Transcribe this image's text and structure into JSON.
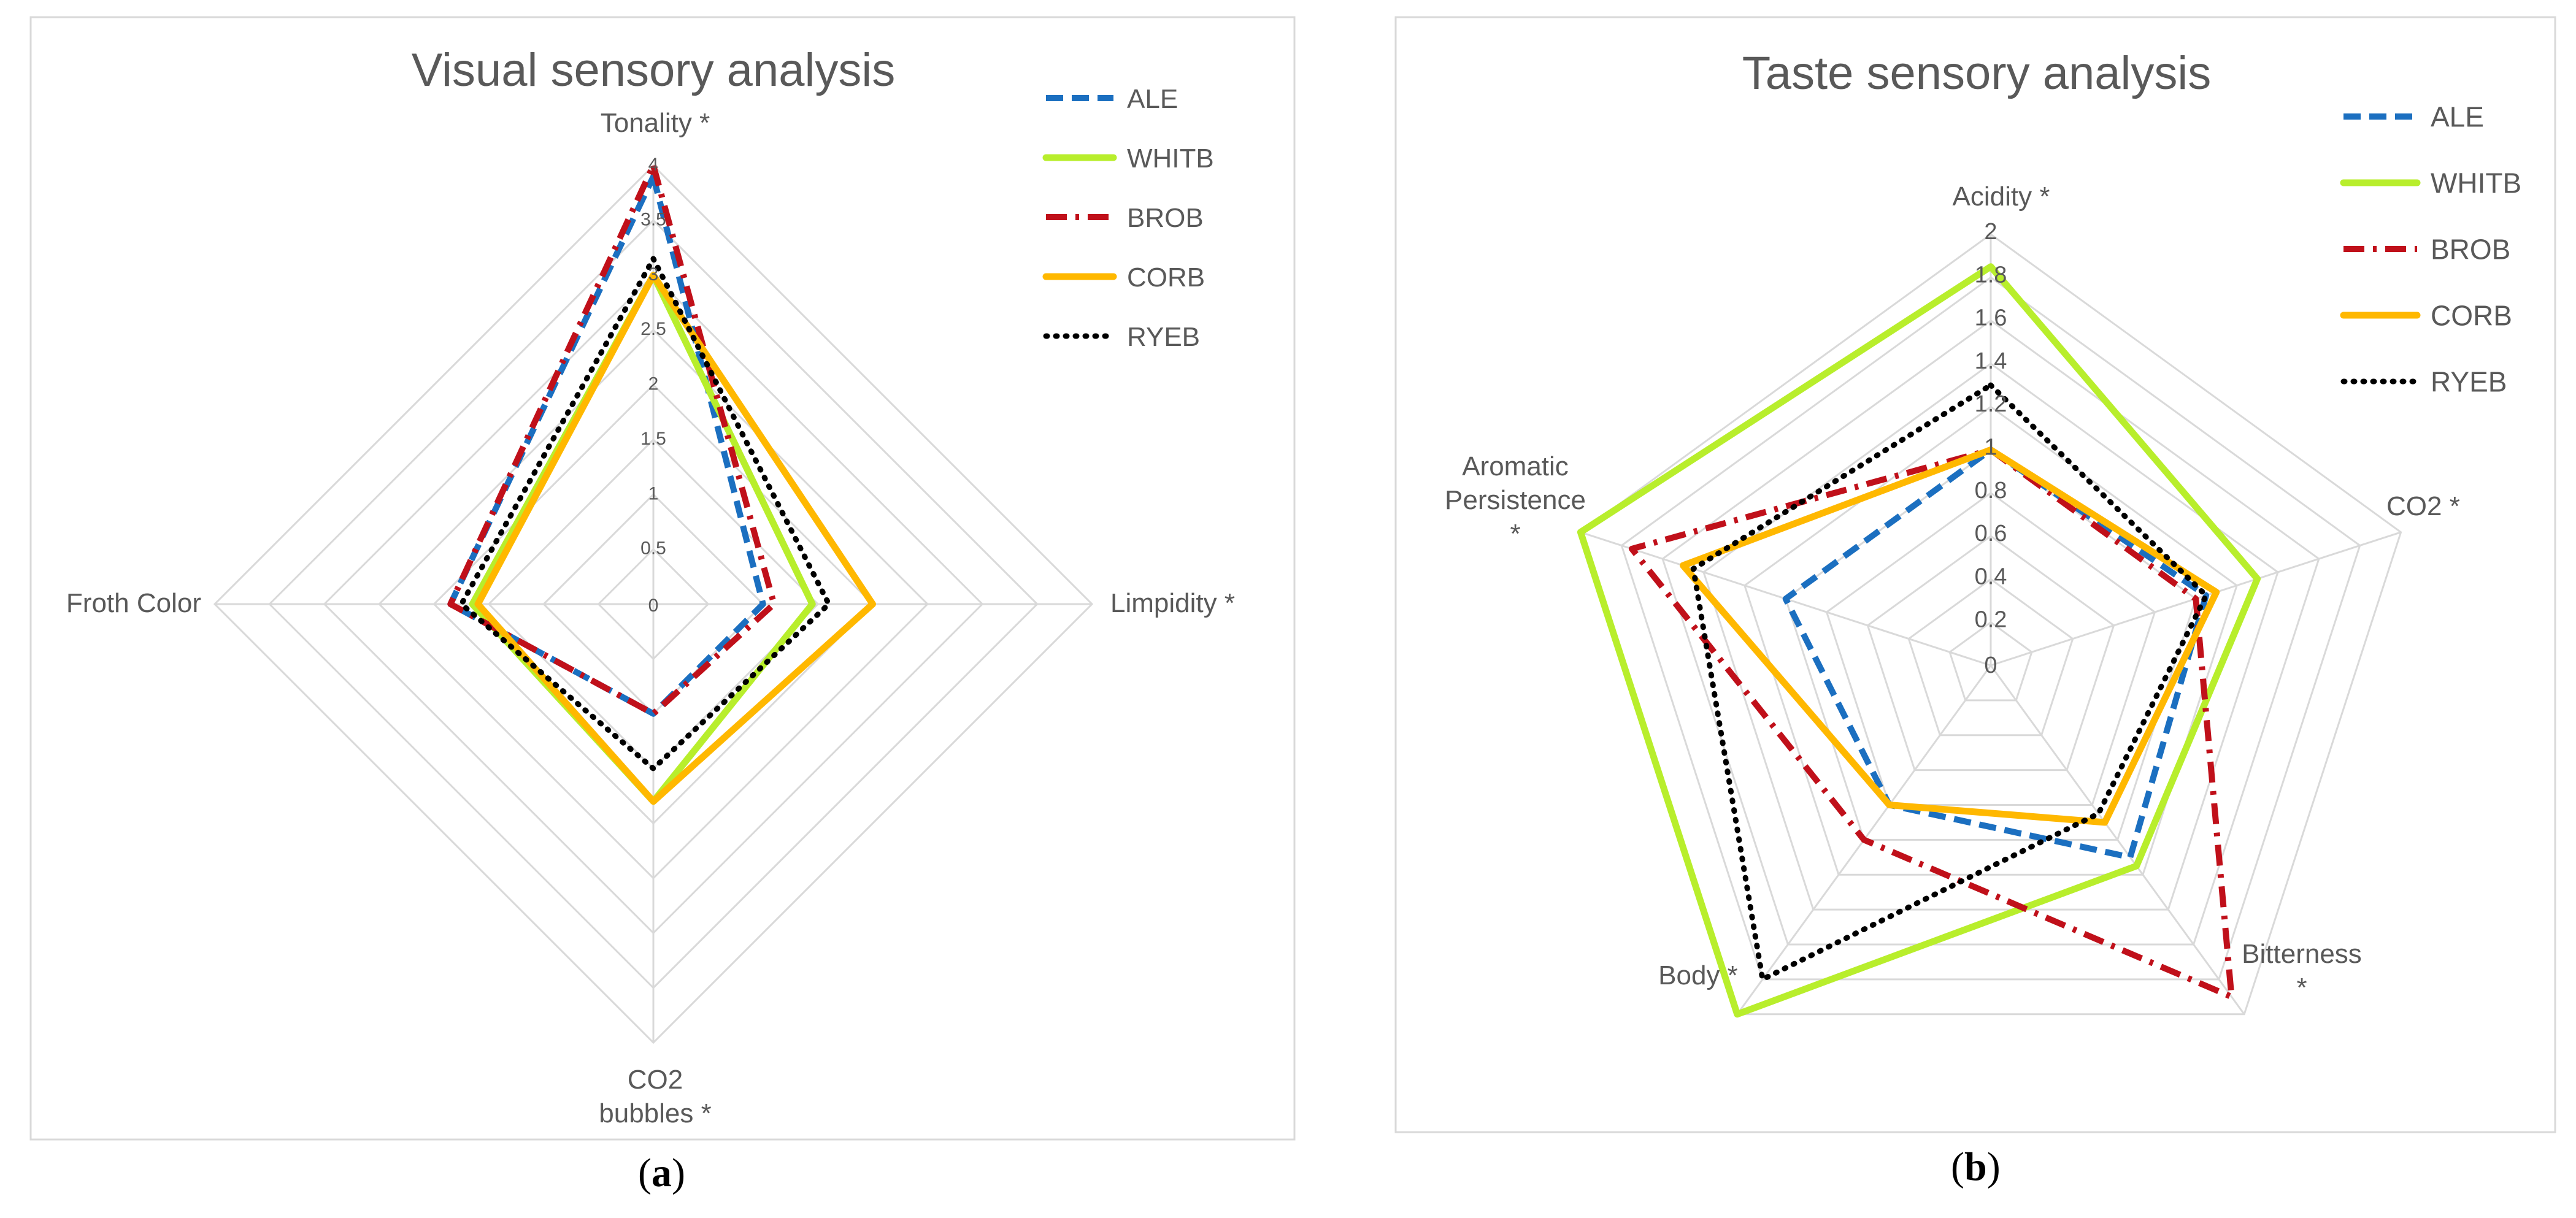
{
  "colors": {
    "ALE": "#1b6fc0",
    "WHITB": "#b8ee2c",
    "BROB": "#c0101a",
    "CORB": "#ffb800",
    "RYEB": "#000000",
    "grid": "#d9d9d9",
    "frame": "#d9d9d9",
    "text": "#595959"
  },
  "panel_labels": {
    "a": "a",
    "b": "b"
  },
  "chart_data": [
    {
      "type": "radar",
      "title": "Visual sensory analysis",
      "axes": [
        "Tonality *",
        "Limpidity *",
        "CO2 bubbles *",
        "Froth Color"
      ],
      "rlim": [
        0,
        4
      ],
      "ticks": [
        "0",
        "0.5",
        "1",
        "1.5",
        "2",
        "2.5",
        "3",
        "3.5",
        "4"
      ],
      "grid": true,
      "legend_position": "top-right",
      "series": [
        {
          "name": "ALE",
          "values": [
            3.9,
            1.0,
            1.0,
            1.85
          ]
        },
        {
          "name": "WHITB",
          "values": [
            3.0,
            1.45,
            1.8,
            1.65
          ]
        },
        {
          "name": "BROB",
          "values": [
            4.0,
            1.1,
            1.0,
            1.85
          ]
        },
        {
          "name": "CORB",
          "values": [
            3.0,
            2.0,
            1.8,
            1.6
          ]
        },
        {
          "name": "RYEB",
          "values": [
            3.15,
            1.6,
            1.5,
            1.75
          ]
        }
      ]
    },
    {
      "type": "radar",
      "title": "Taste sensory analysis",
      "axes": [
        "Acidity *",
        "CO2 *",
        "Bitterness *",
        "Body *",
        "Aromatic Persistence *"
      ],
      "rlim": [
        0,
        2
      ],
      "ticks": [
        "0",
        "0.2",
        "0.4",
        "0.6",
        "0.8",
        "1",
        "1.2",
        "1.4",
        "1.6",
        "1.8",
        "2"
      ],
      "grid": true,
      "legend_position": "top-right",
      "series": [
        {
          "name": "ALE",
          "values": [
            1.0,
            1.05,
            1.1,
            0.8,
            1.0
          ]
        },
        {
          "name": "WHITB",
          "values": [
            1.85,
            1.3,
            1.15,
            2.0,
            2.0
          ]
        },
        {
          "name": "BROB",
          "values": [
            1.0,
            1.0,
            1.9,
            1.0,
            1.75
          ]
        },
        {
          "name": "CORB",
          "values": [
            1.0,
            1.1,
            0.9,
            0.8,
            1.5
          ]
        },
        {
          "name": "RYEB",
          "values": [
            1.3,
            1.05,
            0.85,
            1.8,
            1.45
          ]
        }
      ]
    }
  ]
}
